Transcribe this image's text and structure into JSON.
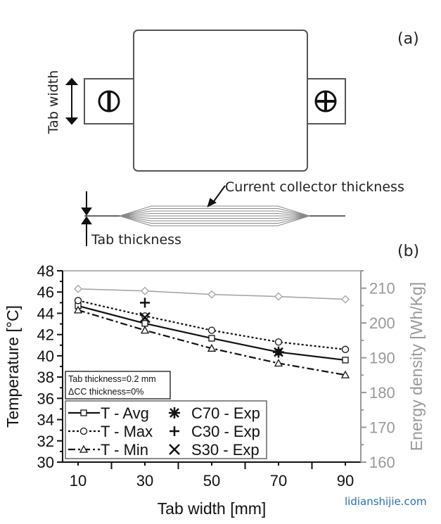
{
  "diagram": {
    "panel_label": "(a)",
    "tab_width_label": "Tab width",
    "current_collector_label": "Current collector thickness",
    "tab_thickness_label": "Tab thickness",
    "negative_icon": "circle-minus-icon",
    "positive_icon": "circle-plus-icon"
  },
  "chart_data": {
    "type": "line",
    "panel_label": "(b)",
    "xlabel": "Tab width [mm]",
    "ylabel": "Temperature [°C]",
    "y2label": "Energy density [Wh/Kg]",
    "x": [
      10,
      30,
      50,
      70,
      90
    ],
    "xticks": [
      "10",
      "30",
      "50",
      "70",
      "90"
    ],
    "xlim": [
      5,
      95
    ],
    "ylim": [
      30,
      48
    ],
    "yticks": [
      "30",
      "32",
      "34",
      "36",
      "38",
      "40",
      "42",
      "44",
      "46",
      "48"
    ],
    "y2lim": [
      160,
      215
    ],
    "y2ticks": [
      "160",
      "170",
      "180",
      "190",
      "200",
      "210"
    ],
    "grid": false,
    "legend_placement": "bottom-left",
    "annotation": [
      "Tab thickness=0.2 mm",
      "ΔCC thickness=0%"
    ],
    "series": [
      {
        "name": "T - Avg",
        "axis": "left",
        "marker": "square",
        "dash": "solid",
        "color": "#111111",
        "values": [
          44.7,
          43.05,
          41.65,
          40.35,
          39.6
        ]
      },
      {
        "name": "T - Max",
        "axis": "left",
        "marker": "circle",
        "dash": "dotted",
        "color": "#111111",
        "values": [
          45.2,
          43.75,
          42.4,
          41.3,
          40.6
        ]
      },
      {
        "name": "T - Min",
        "axis": "left",
        "marker": "triangle",
        "dash": "dashdot",
        "color": "#111111",
        "values": [
          44.3,
          42.4,
          40.7,
          39.3,
          38.2
        ]
      },
      {
        "axis": "right",
        "marker": "diamond",
        "dash": "solid",
        "color": "#a0a0a0",
        "values": [
          209.8,
          209.2,
          208.2,
          207.6,
          206.8
        ]
      }
    ],
    "experiments": [
      {
        "name": "C70 - Exp",
        "marker": "asterisk",
        "x": 70,
        "y": 40.35
      },
      {
        "name": "C30 - Exp",
        "marker": "plus",
        "x": 30,
        "y": 45.0
      },
      {
        "name": "S30 - Exp",
        "marker": "cross",
        "x": 30,
        "y": 43.6
      }
    ],
    "axis_right_color": "#999999"
  },
  "watermark": {
    "text": "lidianshijie.com",
    "color": "#2a6fb0"
  }
}
